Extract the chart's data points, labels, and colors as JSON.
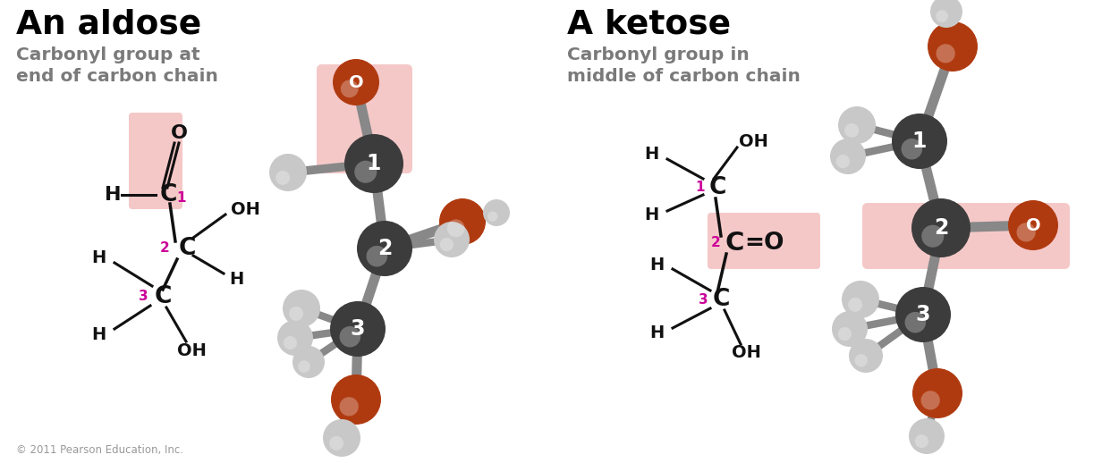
{
  "bg_color": "#ffffff",
  "left_title": "An aldose",
  "left_subtitle": "Carbonyl group at\nend of carbon chain",
  "right_title": "A ketose",
  "right_subtitle": "Carbonyl group in\nmiddle of carbon chain",
  "copyright": "© 2011 Pearson Education, Inc.",
  "title_color": "#000000",
  "subtitle_color": "#7a7a7a",
  "highlight_color": "#f5c8c8",
  "carbon_color": "#3c3c3c",
  "oxygen_color": "#b03a10",
  "hydrogen_color": "#c8c8c8",
  "bond_color": "#888888",
  "magenta_color": "#cc0099",
  "black_color": "#111111",
  "white_color": "#ffffff"
}
